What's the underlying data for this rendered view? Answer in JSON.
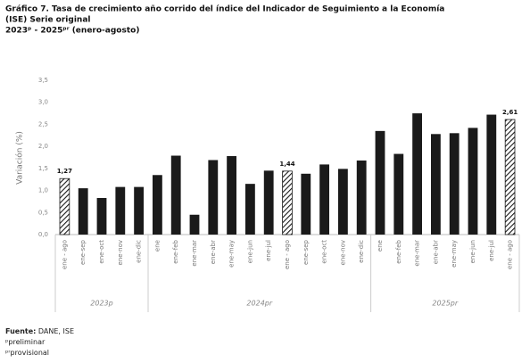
{
  "chart_data": {
    "type": "bar",
    "title": "Gráfico 7. Tasa de crecimiento año corrido del índice del Indicador de Seguimiento a la Economía",
    "title_line2": "(ISE) Serie original",
    "subtitle": "2023ᵖ - 2025ᵖʳ (enero-agosto)",
    "y_label": "Variación (%)",
    "categories": [
      "ene - ago",
      "ene-sep",
      "ene-oct",
      "ene-nov",
      "ene-dic",
      "ene",
      "ene-feb",
      "ene-mar",
      "ene-abr",
      "ene-may",
      "ene-jun",
      "ene-jul",
      "ene - ago",
      "ene-sep",
      "ene-oct",
      "ene-nov",
      "ene-dic",
      "ene",
      "ene-feb",
      "ene-mar",
      "ene-abr",
      "ene-may",
      "ene-jun",
      "ene-jul",
      "ene - ago"
    ],
    "values": [
      1.27,
      1.05,
      0.83,
      1.08,
      1.08,
      1.35,
      1.79,
      0.45,
      1.69,
      1.78,
      1.15,
      1.45,
      1.44,
      1.38,
      1.59,
      1.49,
      1.68,
      2.35,
      1.83,
      2.75,
      2.28,
      2.3,
      2.42,
      2.72,
      2.61
    ],
    "value_labels": [
      "1,27",
      null,
      null,
      null,
      null,
      null,
      null,
      null,
      null,
      null,
      null,
      null,
      "1,44",
      null,
      null,
      null,
      null,
      null,
      null,
      null,
      null,
      null,
      null,
      null,
      "2,61"
    ],
    "groups": [
      {
        "label": "2023p",
        "size": 5
      },
      {
        "label": "2024pr",
        "size": 12
      },
      {
        "label": "2025pr",
        "size": 8
      }
    ],
    "color": "#1a1a1a",
    "ylim": [
      0,
      3.5
    ],
    "yticks": [
      {
        "value": 0,
        "label": "0,0"
      },
      {
        "value": 0.5,
        "label": "0,5"
      },
      {
        "value": 1,
        "label": "1,0"
      },
      {
        "value": 1.5,
        "label": "1,5"
      },
      {
        "value": 2,
        "label": "2,0"
      },
      {
        "value": 2.5,
        "label": "2,5"
      },
      {
        "value": 3,
        "label": "3,0"
      },
      {
        "value": 3.5,
        "label": "3,5"
      }
    ],
    "grid": false
  },
  "footer": {
    "source_label": "Fuente:",
    "source": "DANE, ISE",
    "notes": [
      "ᵖpreliminar",
      "ᵖʳprovisional"
    ]
  }
}
